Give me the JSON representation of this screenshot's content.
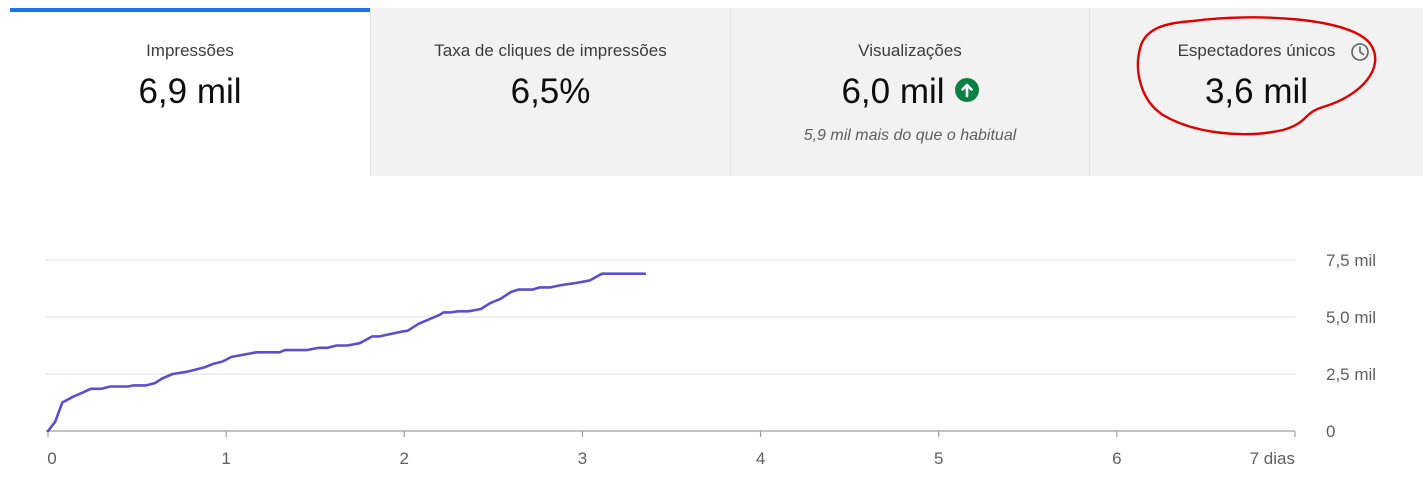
{
  "metrics": [
    {
      "label": "Impressões",
      "value": "6,9 mil",
      "active": true
    },
    {
      "label": "Taxa de cliques de impressões",
      "value": "6,5%"
    },
    {
      "label": "Visualizações",
      "value": "6,0 mil",
      "note": "5,9 mil mais do que o habitual",
      "icon": "arrow-up-circle-icon"
    },
    {
      "label": "Espectadores únicos",
      "value": "3,6 mil",
      "icon": "clock-icon"
    }
  ],
  "colors": {
    "accent": "#1a73e8",
    "series": "#5b4fcf",
    "positive": "#0b8043",
    "annotation": "#e00000"
  },
  "chart_data": {
    "type": "line",
    "x_tick_labels": [
      "0",
      "1",
      "2",
      "3",
      "4",
      "5",
      "6",
      "7 dias"
    ],
    "y_tick_labels": [
      "0",
      "2,5 mil",
      "5,0 mil",
      "7,5 mil"
    ],
    "xlim": [
      0,
      7
    ],
    "ylim": [
      0,
      7500
    ],
    "grid": true,
    "series": [
      {
        "values": [
          [
            0,
            0
          ],
          [
            0.04,
            400
          ],
          [
            0.08,
            1250
          ],
          [
            0.14,
            1500
          ],
          [
            0.2,
            1700
          ],
          [
            0.24,
            1850
          ],
          [
            0.3,
            1850
          ],
          [
            0.35,
            1950
          ],
          [
            0.45,
            1950
          ],
          [
            0.48,
            2000
          ],
          [
            0.55,
            2000
          ],
          [
            0.6,
            2100
          ],
          [
            0.64,
            2300
          ],
          [
            0.7,
            2500
          ],
          [
            0.78,
            2600
          ],
          [
            0.88,
            2800
          ],
          [
            0.93,
            2950
          ],
          [
            0.98,
            3050
          ],
          [
            1.03,
            3250
          ],
          [
            1.1,
            3350
          ],
          [
            1.17,
            3450
          ],
          [
            1.3,
            3450
          ],
          [
            1.33,
            3550
          ],
          [
            1.45,
            3550
          ],
          [
            1.52,
            3650
          ],
          [
            1.57,
            3650
          ],
          [
            1.62,
            3750
          ],
          [
            1.68,
            3750
          ],
          [
            1.75,
            3850
          ],
          [
            1.82,
            4150
          ],
          [
            1.86,
            4150
          ],
          [
            1.92,
            4250
          ],
          [
            1.98,
            4350
          ],
          [
            2.02,
            4400
          ],
          [
            2.08,
            4700
          ],
          [
            2.14,
            4900
          ],
          [
            2.2,
            5100
          ],
          [
            2.22,
            5200
          ],
          [
            2.26,
            5200
          ],
          [
            2.3,
            5250
          ],
          [
            2.36,
            5250
          ],
          [
            2.43,
            5350
          ],
          [
            2.48,
            5600
          ],
          [
            2.54,
            5800
          ],
          [
            2.6,
            6100
          ],
          [
            2.64,
            6200
          ],
          [
            2.72,
            6200
          ],
          [
            2.76,
            6300
          ],
          [
            2.82,
            6300
          ],
          [
            2.88,
            6400
          ],
          [
            2.97,
            6500
          ],
          [
            3.04,
            6600
          ],
          [
            3.11,
            6900
          ],
          [
            3.2,
            6900
          ],
          [
            3.35,
            6900
          ]
        ]
      }
    ]
  }
}
